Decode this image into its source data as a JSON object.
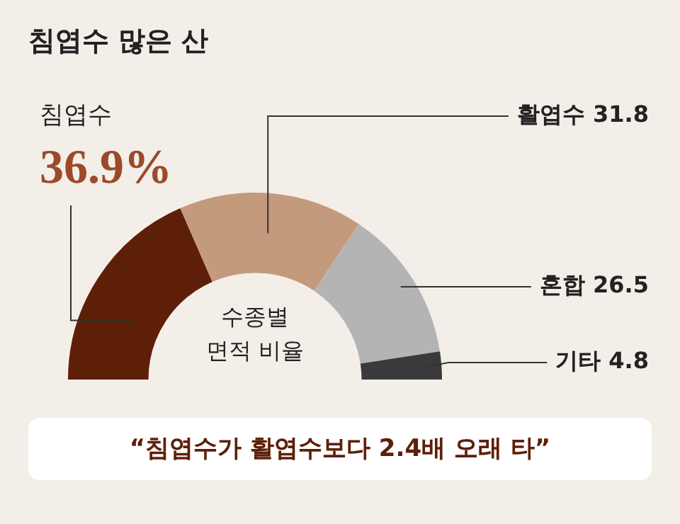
{
  "chart_data": {
    "type": "donut",
    "title": "침엽수 많은 산",
    "categories": [
      "침엽수",
      "활엽수",
      "혼합",
      "기타"
    ],
    "values": [
      36.9,
      31.8,
      26.5,
      4.8
    ],
    "value_labels": [
      "36.9%",
      "31.8",
      "26.5",
      "4.8"
    ],
    "colors": [
      "#5e1f08",
      "#c49a7c",
      "#b4b4b4",
      "#3a3a3a"
    ],
    "legend": false,
    "annotations": [
      "수종별\n면적 비율",
      "“침엽수가 활엽수보다 2.4배 오래 타”"
    ]
  }
}
